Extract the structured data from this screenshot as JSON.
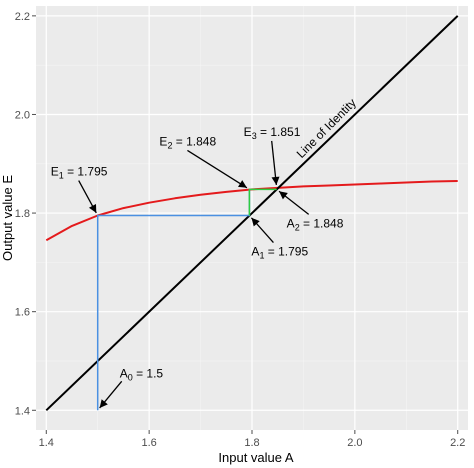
{
  "chart_data": {
    "type": "line",
    "title": "",
    "xlabel": "Input value A",
    "ylabel": "Output value E",
    "xlim": [
      1.38,
      2.22
    ],
    "ylim": [
      1.36,
      2.22
    ],
    "xticks": [
      1.4,
      1.6,
      1.8,
      2.0,
      2.2
    ],
    "yticks": [
      1.4,
      1.6,
      1.8,
      2.0,
      2.2
    ],
    "grid": true,
    "background": "#ebebeb",
    "series": [
      {
        "name": "",
        "color": "#e41a1c",
        "x": [
          1.4,
          1.45,
          1.5,
          1.55,
          1.6,
          1.65,
          1.7,
          1.75,
          1.8,
          1.85,
          1.9,
          1.95,
          2.0,
          2.05,
          2.1,
          2.15,
          2.2
        ],
        "y": [
          1.745,
          1.774,
          1.795,
          1.81,
          1.821,
          1.83,
          1.837,
          1.843,
          1.848,
          1.851,
          1.854,
          1.856,
          1.858,
          1.86,
          1.862,
          1.864,
          1.865
        ]
      },
      {
        "name": "Line of Identity",
        "color": "#000000",
        "x": [
          1.4,
          2.2
        ],
        "y": [
          1.4,
          2.2
        ]
      },
      {
        "name": "",
        "color": "#4a90e2",
        "x": [
          1.5,
          1.5,
          1.795,
          1.795
        ],
        "y": [
          1.4,
          1.795,
          1.795,
          1.848
        ]
      },
      {
        "name": "",
        "color": "#2ecc40",
        "x": [
          1.795,
          1.795,
          1.848
        ],
        "y": [
          1.795,
          1.848,
          1.848
        ]
      }
    ],
    "identity_label": "Line of Identity",
    "annotations": [
      {
        "label": "E1 = 1.795",
        "point": [
          1.5,
          1.795
        ]
      },
      {
        "label": "E2 = 1.848",
        "point": [
          1.795,
          1.848
        ]
      },
      {
        "label": "E3 = 1.851",
        "point": [
          1.848,
          1.851
        ]
      },
      {
        "label": "A0 = 1.5",
        "point": [
          1.5,
          1.4
        ]
      },
      {
        "label": "A1 = 1.795",
        "point": [
          1.795,
          1.795
        ]
      },
      {
        "label": "A2 = 1.848",
        "point": [
          1.848,
          1.848
        ]
      }
    ]
  }
}
